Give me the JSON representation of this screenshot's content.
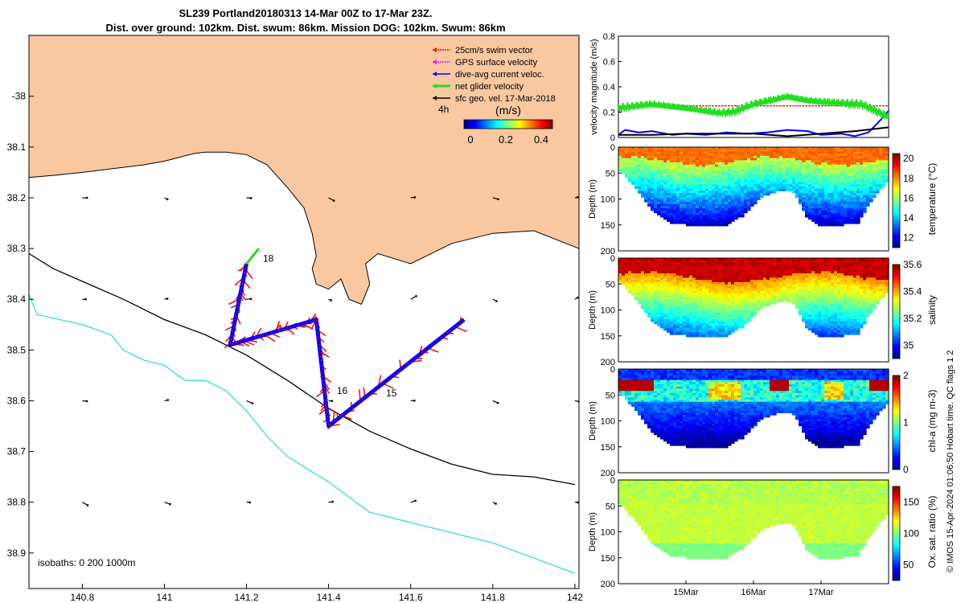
{
  "title": {
    "line1": "SL239 Portland20180313 14-Mar 00Z to 17-Mar 23Z.",
    "line2": "Dist. over ground: 102km. Dist. swum: 86km. Mission DOG: 102km. Swum: 86km"
  },
  "footer_note": "© IMOS 15-Apr-2024 01:06:50 Hobart time. QC flags 1  2",
  "colors": {
    "land": "#f9c8a1",
    "swim": "#ff0000",
    "dive_avg": "#0000ff",
    "net": "#22dd22",
    "geo": "#000000",
    "gps": "#ff00ff",
    "isobath_200": "#000000",
    "isobath_1000": "#33dddd"
  },
  "chart_data": [
    {
      "type": "map",
      "id": "track-map",
      "x": {
        "ticks": [
          140.8,
          141,
          141.2,
          141.4,
          141.6,
          141.8,
          142
        ],
        "range": [
          140.67,
          142.01
        ]
      },
      "y": {
        "ticks": [
          -38,
          -38.1,
          -38.2,
          -38.3,
          -38.4,
          -38.5,
          -38.6,
          -38.7,
          -38.8,
          -38.9
        ],
        "tick_labels": [
          "-38",
          "38.1",
          "38.2",
          "38.3",
          "38.4",
          "38.5",
          "38.6",
          "38.7",
          "38.8",
          "38.9"
        ],
        "range": [
          -37.88,
          -38.97
        ]
      },
      "legend": {
        "position": "top-right",
        "items": [
          {
            "label": "25cm/s swim vector",
            "color": "#ff0000"
          },
          {
            "label": "GPS surface velocity",
            "color": "#ff00ff"
          },
          {
            "label": "dive-avg current veloc.",
            "color": "#0000ff"
          },
          {
            "label": "net glider velocity",
            "color": "#22dd22"
          },
          {
            "label": "sfc geo. vel. 17-Mar-2018",
            "color": "#000000"
          }
        ]
      },
      "colorbar": {
        "time_label": "4h",
        "unit": "(m/s)",
        "ticks": [
          0,
          0.2,
          0.4
        ],
        "range": [
          0,
          0.5
        ]
      },
      "isobaths_note": "isobaths: 0   200  1000m",
      "track": [
        [
          141.2,
          -38.33
        ],
        [
          141.16,
          -38.49
        ],
        [
          141.37,
          -38.44
        ],
        [
          141.4,
          -38.65
        ],
        [
          141.73,
          -38.44
        ]
      ],
      "track_extra": [
        [
          141.2,
          -38.33
        ],
        [
          141.23,
          -38.3
        ]
      ],
      "day_labels": [
        {
          "text": "18",
          "lon": 141.24,
          "lat": -38.32
        },
        {
          "text": "16",
          "lon": 141.42,
          "lat": -38.58
        },
        {
          "text": "15",
          "lon": 141.54,
          "lat": -38.585
        }
      ],
      "isobath_200": [
        [
          140.67,
          -38.31
        ],
        [
          140.73,
          -38.34
        ],
        [
          140.9,
          -38.4
        ],
        [
          141.0,
          -38.44
        ],
        [
          141.1,
          -38.47
        ],
        [
          141.2,
          -38.51
        ],
        [
          141.3,
          -38.56
        ],
        [
          141.4,
          -38.615
        ],
        [
          141.5,
          -38.66
        ],
        [
          141.6,
          -38.695
        ],
        [
          141.7,
          -38.725
        ],
        [
          141.8,
          -38.745
        ],
        [
          141.9,
          -38.75
        ],
        [
          142.0,
          -38.765
        ]
      ],
      "isobath_1000": [
        [
          140.67,
          -38.39
        ],
        [
          140.69,
          -38.43
        ],
        [
          140.8,
          -38.45
        ],
        [
          140.87,
          -38.47
        ],
        [
          140.9,
          -38.5
        ],
        [
          140.95,
          -38.52
        ],
        [
          141.0,
          -38.53
        ],
        [
          141.05,
          -38.56
        ],
        [
          141.1,
          -38.56
        ],
        [
          141.15,
          -38.58
        ],
        [
          141.2,
          -38.62
        ],
        [
          141.25,
          -38.67
        ],
        [
          141.3,
          -38.71
        ],
        [
          141.4,
          -38.76
        ],
        [
          141.45,
          -38.79
        ],
        [
          141.5,
          -38.82
        ],
        [
          141.6,
          -38.84
        ],
        [
          141.7,
          -38.86
        ],
        [
          141.8,
          -38.88
        ],
        [
          141.9,
          -38.91
        ],
        [
          142.0,
          -38.94
        ]
      ],
      "coast": [
        [
          140.67,
          -38.16
        ],
        [
          140.74,
          -38.155
        ],
        [
          140.8,
          -38.15
        ],
        [
          140.87,
          -38.143
        ],
        [
          140.9,
          -38.14
        ],
        [
          140.95,
          -38.135
        ],
        [
          141.0,
          -38.128
        ],
        [
          141.07,
          -38.113
        ],
        [
          141.1,
          -38.11
        ],
        [
          141.15,
          -38.11
        ],
        [
          141.2,
          -38.115
        ],
        [
          141.25,
          -38.135
        ],
        [
          141.3,
          -38.18
        ],
        [
          141.34,
          -38.22
        ],
        [
          141.36,
          -38.27
        ],
        [
          141.37,
          -38.315
        ],
        [
          141.36,
          -38.34
        ],
        [
          141.37,
          -38.37
        ],
        [
          141.4,
          -38.38
        ],
        [
          141.43,
          -38.36
        ],
        [
          141.45,
          -38.4
        ],
        [
          141.48,
          -38.41
        ],
        [
          141.5,
          -38.37
        ],
        [
          141.49,
          -38.33
        ],
        [
          141.52,
          -38.31
        ],
        [
          141.56,
          -38.32
        ],
        [
          141.6,
          -38.33
        ],
        [
          141.65,
          -38.31
        ],
        [
          141.7,
          -38.29
        ],
        [
          141.8,
          -38.27
        ],
        [
          141.9,
          -38.265
        ],
        [
          142.01,
          -38.3
        ]
      ],
      "geo_arrows": {
        "lons": [
          140.8,
          141.0,
          141.2,
          141.4,
          141.6,
          141.8,
          142.0
        ],
        "lats": [
          -38.2,
          -38.4,
          -38.6,
          -38.8
        ],
        "scale_note": "small surface geostrophic velocity arrows"
      }
    },
    {
      "type": "line",
      "id": "velocity-panel",
      "ylabel": "velocity magnitude (m/s)",
      "ylim": [
        0,
        0.8
      ],
      "yticks": [
        0,
        0.2,
        0.4,
        0.6,
        0.8
      ],
      "xlim": [
        14.0,
        18.0
      ],
      "series": [
        {
          "name": "swim",
          "color": "#ff0000",
          "x": [
            14.0,
            18.0
          ],
          "y": [
            0.25,
            0.25
          ]
        },
        {
          "name": "dive-avg",
          "color": "#0000ff",
          "x": [
            14.0,
            14.1,
            14.3,
            14.5,
            14.8,
            15.0,
            15.3,
            15.6,
            15.9,
            16.2,
            16.5,
            16.8,
            17.0,
            17.3,
            17.5,
            17.7,
            17.85,
            18.0
          ],
          "y": [
            0.02,
            0.06,
            0.04,
            0.05,
            0.02,
            0.03,
            0.02,
            0.04,
            0.03,
            0.04,
            0.06,
            0.05,
            0.02,
            0.03,
            0.01,
            0.04,
            0.12,
            0.21
          ]
        },
        {
          "name": "geo",
          "color": "#000000",
          "x": [
            14.0,
            14.5,
            15.0,
            15.5,
            16.0,
            16.5,
            17.0,
            17.5,
            18.0
          ],
          "y": [
            0.02,
            0.02,
            0.03,
            0.03,
            0.03,
            0.01,
            0.03,
            0.05,
            0.08
          ]
        },
        {
          "name": "net",
          "color": "#22dd22",
          "x_start": 14.0,
          "x_end": 18.0,
          "base": [
            [
              14.0,
              0.27
            ],
            [
              14.5,
              0.3
            ],
            [
              15.0,
              0.27
            ],
            [
              15.5,
              0.23
            ],
            [
              15.7,
              0.24
            ],
            [
              16.0,
              0.3
            ],
            [
              16.5,
              0.36
            ],
            [
              16.8,
              0.33
            ],
            [
              17.2,
              0.31
            ],
            [
              17.6,
              0.3
            ],
            [
              18.0,
              0.2
            ]
          ],
          "amplitude": 0.06
        }
      ]
    },
    {
      "type": "heatmap",
      "id": "temperature-panel",
      "variable": "temperature",
      "ylabel": "Depth (m)",
      "cbar_label": "temperature (°C)",
      "ylim": [
        0,
        200
      ],
      "yticks": [
        0,
        50,
        100,
        150,
        200
      ],
      "crange": [
        11,
        20.5
      ],
      "cticks": [
        12,
        14,
        16,
        18,
        20
      ],
      "xlim": [
        14.0,
        18.0
      ]
    },
    {
      "type": "heatmap",
      "id": "salinity-panel",
      "variable": "salinity",
      "ylabel": "Depth (m)",
      "cbar_label": "salinity",
      "ylim": [
        0,
        200
      ],
      "yticks": [
        0,
        50,
        100,
        150,
        200
      ],
      "crange": [
        34.9,
        35.6
      ],
      "cticks": [
        35,
        35.2,
        35.4,
        35.6
      ],
      "xlim": [
        14.0,
        18.0
      ]
    },
    {
      "type": "heatmap",
      "id": "chla-panel",
      "variable": "chla",
      "ylabel": "Depth (m)",
      "cbar_label": "chl-a (mg m-3)",
      "ylim": [
        0,
        200
      ],
      "yticks": [
        0,
        50,
        100,
        150,
        200
      ],
      "crange": [
        0,
        2
      ],
      "cticks": [
        0,
        1,
        2
      ],
      "xlim": [
        14.0,
        18.0
      ]
    },
    {
      "type": "heatmap",
      "id": "oxygen-panel",
      "variable": "oxygen",
      "ylabel": "Depth (m)",
      "cbar_label": "Ox. sat. ratio (%)",
      "ylim": [
        0,
        200
      ],
      "yticks": [
        0,
        50,
        100,
        150,
        200
      ],
      "crange": [
        25,
        175
      ],
      "cticks": [
        50,
        100,
        150
      ],
      "xlim": [
        14.0,
        18.0
      ],
      "xticks": [
        15,
        16,
        17
      ],
      "xtick_labels": [
        "15Mar",
        "16Mar",
        "17Mar"
      ]
    }
  ]
}
